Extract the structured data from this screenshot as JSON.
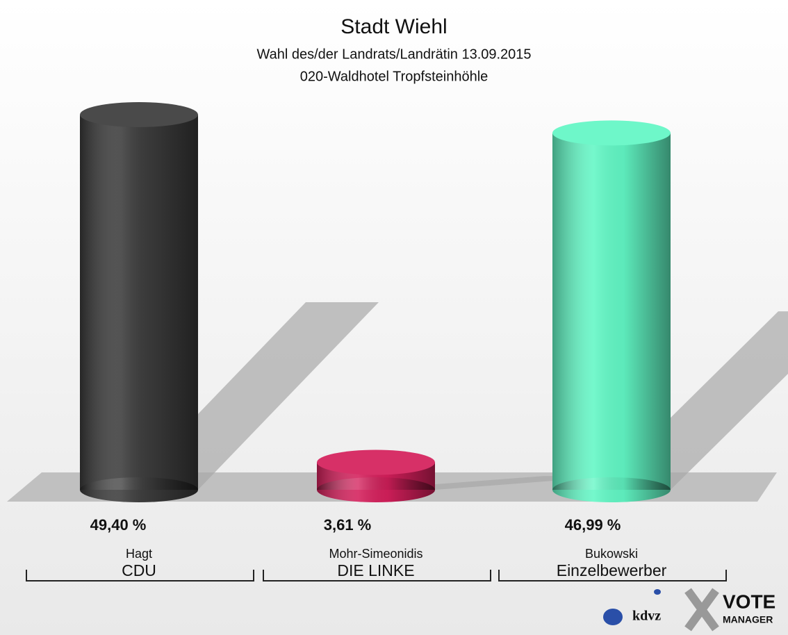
{
  "chart_data": {
    "type": "bar",
    "title": "Stadt Wiehl",
    "subtitle": [
      "Wahl des/der Landrats/Landrätin 13.09.2015",
      "020-Waldhotel Tropfsteinhöhle"
    ],
    "categories": [
      "Hagt",
      "Mohr-Simeonidis",
      "Bukowski"
    ],
    "parties": [
      "CDU",
      "DIE LINKE",
      "Einzelbewerber"
    ],
    "values": [
      49.4,
      3.61,
      46.99
    ],
    "value_labels": [
      "49,40 %",
      "3,61 %",
      "46,99 %"
    ],
    "colors": [
      "#3b3b3b",
      "#d41f5b",
      "#62f7c5"
    ],
    "logo": [
      "kdvz",
      "VOTE",
      "MANAGER"
    ]
  }
}
